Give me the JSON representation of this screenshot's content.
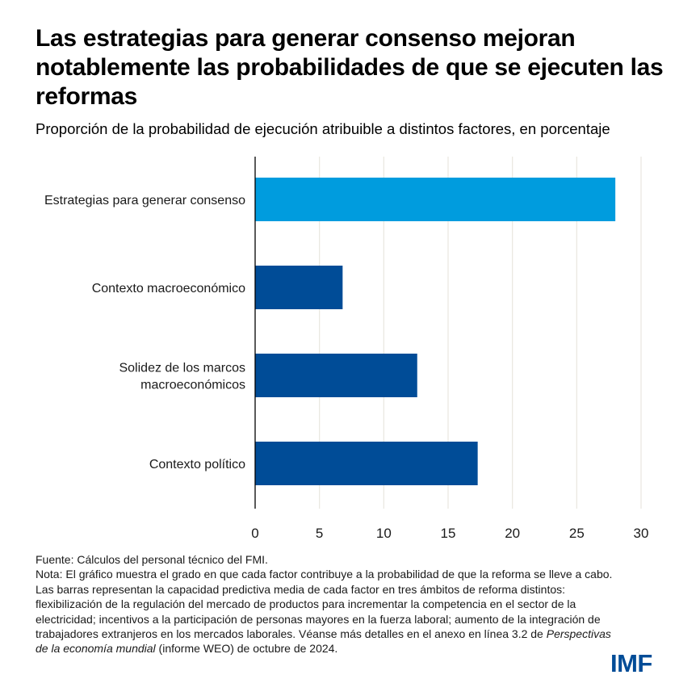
{
  "header": {
    "title": "Las estrategias para generar consenso mejoran notablemente las probabilidades de que se ejecuten las reformas",
    "subtitle": "Proporción de la probabilidad de ejecución atribuible a distintos factores, en porcentaje"
  },
  "chart_data": {
    "type": "bar",
    "orientation": "horizontal",
    "title": "Las estrategias para generar consenso mejoran notablemente las probabilidades de que se ejecuten las reformas",
    "subtitle": "Proporción de la probabilidad de ejecución atribuible a distintos factores, en porcentaje",
    "categories": [
      [
        "Estrategias para generar consenso"
      ],
      [
        "Contexto macroeconómico"
      ],
      [
        "Solidez de los marcos",
        "macroeconómicos"
      ],
      [
        "Contexto político"
      ]
    ],
    "values": [
      28.0,
      6.8,
      12.6,
      17.3
    ],
    "colors": [
      "#009CDE",
      "#004C97",
      "#004C97",
      "#004C97"
    ],
    "xlabel": "",
    "ylabel": "",
    "xlim": [
      0,
      30
    ],
    "xticks": [
      0,
      5,
      10,
      15,
      20,
      25,
      30
    ],
    "grid": true,
    "grid_color": "#E8E6DF",
    "legend": "none"
  },
  "footer": {
    "source": "Fuente: Cálculos del personal técnico del FMI.",
    "note_prefix": "Nota: El gráfico muestra el grado en que cada factor contribuye a la probabilidad de que la reforma se lleve a cabo. Las barras representan la capacidad predictiva media de cada factor en tres ámbitos de reforma distintos: flexibilización de la regulación del mercado de productos para incrementar la competencia en el sector de la electricidad; incentivos a la participación de personas mayores en la fuerza laboral; aumento de la integración de trabajadores extranjeros en los mercados laborales. Véanse más detalles en el anexo en línea 3.2 de ",
    "note_italic": "Perspectivas de la economía mundial",
    "note_suffix": " (informe WEO) de octubre de 2024."
  },
  "branding": {
    "logo_text": "IMF",
    "logo_color": "#004C97"
  }
}
